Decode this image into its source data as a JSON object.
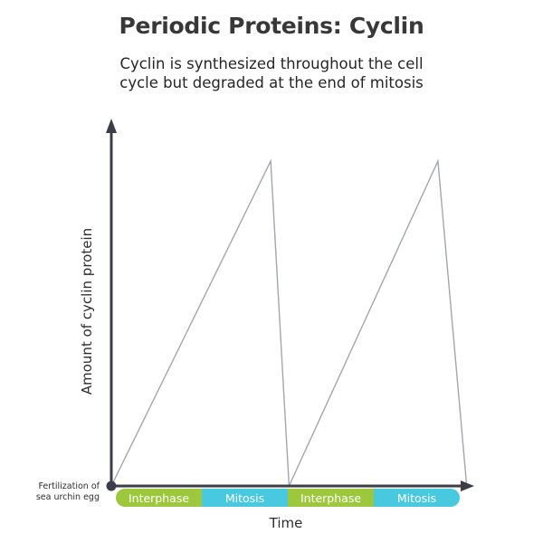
{
  "chart_data": {
    "type": "line",
    "title": "Periodic Proteins: Cyclin",
    "subtitle": "Cyclin is synthesized throughout the cell cycle but degraded at the end of mitosis",
    "xlabel": "Time",
    "ylabel": "Amount of cyclin protein",
    "origin_annotation": [
      "Fertilization of",
      "sea urchin egg"
    ],
    "grid": false,
    "xlim": [
      0,
      4
    ],
    "ylim": [
      0,
      1
    ],
    "series": [
      {
        "x": [
          0,
          1.83,
          2.04,
          3.75,
          4.08
        ],
        "y": [
          0,
          1,
          0,
          1,
          0
        ]
      }
    ],
    "phases": [
      {
        "label": "Interphase",
        "start": 0,
        "end": 1,
        "color": "#9dc73d"
      },
      {
        "label": "Mitosis",
        "start": 1,
        "end": 2,
        "color": "#48c9df"
      },
      {
        "label": "Interphase",
        "start": 2,
        "end": 3,
        "color": "#9dc73d"
      },
      {
        "label": "Mitosis",
        "start": 3,
        "end": 4,
        "color": "#48c9df"
      }
    ],
    "colors": {
      "line": "#a3a6ad",
      "axis": "#3b3e48"
    }
  }
}
